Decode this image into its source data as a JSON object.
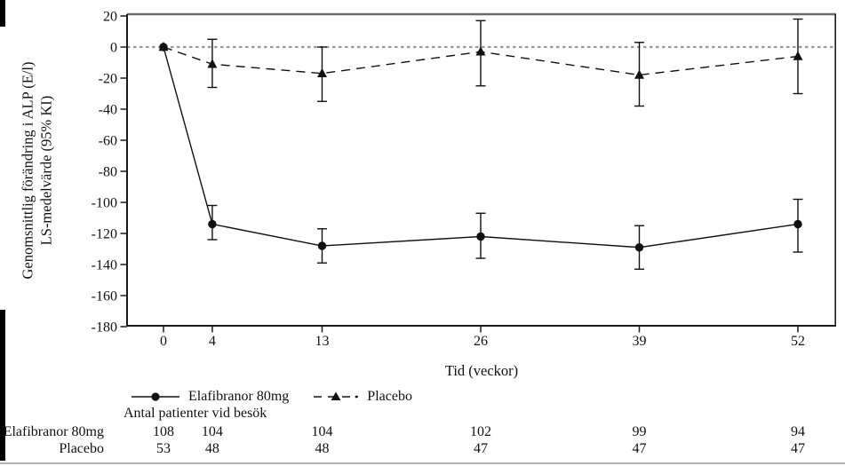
{
  "figure": {
    "y_axis_title_line1": "Genomsnittlig förändring i ALP (E/l)",
    "y_axis_title_line2": "LS-medelvärde (95% KI)",
    "x_axis_title": "Tid (veckor)"
  },
  "chart_data": {
    "type": "line",
    "title": "",
    "xlabel": "Tid (veckor)",
    "ylabel": "Genomsnittlig förändring i ALP (E/l) LS-medelvärde (95% KI)",
    "x": [
      0,
      4,
      13,
      26,
      39,
      52
    ],
    "x_tick_labels": [
      "0",
      "4",
      "13",
      "26",
      "39",
      "52"
    ],
    "y_ticks": [
      20,
      0,
      -20,
      -40,
      -60,
      -80,
      -100,
      -120,
      -140,
      -160,
      -180
    ],
    "ylim": [
      -180,
      20
    ],
    "grid": false,
    "legend_position": "bottom",
    "reference_line_y": 0,
    "series": [
      {
        "name": "Placebo",
        "marker": "triangle",
        "line": "dashed",
        "values": [
          0,
          -11,
          -17,
          -3,
          -18,
          -6
        ],
        "ci_upper": [
          null,
          5,
          0,
          17,
          3,
          18
        ],
        "ci_lower": [
          null,
          -26,
          -35,
          -25,
          -38,
          -30
        ]
      },
      {
        "name": "Elafibranor 80mg",
        "marker": "circle",
        "line": "solid",
        "values": [
          0,
          -114,
          -128,
          -122,
          -129,
          -114
        ],
        "ci_upper": [
          null,
          -102,
          -117,
          -107,
          -115,
          -98
        ],
        "ci_lower": [
          null,
          -124,
          -139,
          -136,
          -143,
          -132
        ]
      }
    ],
    "colors": {
      "series": "#111111",
      "reference_line": "#9a9a9a",
      "frame_top": "#6b6b6b",
      "axis": "#1a1a1a"
    }
  },
  "legend": {
    "elafibranor_label": "Elafibranor 80mg",
    "placebo_label": "Placebo"
  },
  "patients_table": {
    "title": "Antal patienter vid besök",
    "rows": [
      {
        "label": "Elafibranor 80mg",
        "counts": [
          108,
          104,
          104,
          102,
          99,
          94
        ]
      },
      {
        "label": "Placebo",
        "counts": [
          53,
          48,
          48,
          47,
          47,
          47
        ]
      }
    ]
  }
}
